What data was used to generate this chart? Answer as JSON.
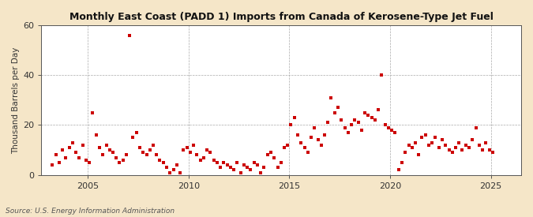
{
  "title": "Monthly East Coast (PADD 1) Imports from Canada of Kerosene-Type Jet Fuel",
  "ylabel": "Thousand Barrels per Day",
  "source": "Source: U.S. Energy Information Administration",
  "figure_bg": "#f5e6c8",
  "plot_bg": "#ffffff",
  "dot_color": "#cc0000",
  "ylim": [
    0,
    60
  ],
  "yticks": [
    0,
    20,
    40,
    60
  ],
  "xlim_start": 2002.7,
  "xlim_end": 2026.5,
  "xticks": [
    2005,
    2010,
    2015,
    2020,
    2025
  ],
  "data": [
    [
      2003.25,
      4
    ],
    [
      2003.42,
      8
    ],
    [
      2003.58,
      5
    ],
    [
      2003.75,
      10
    ],
    [
      2003.92,
      7
    ],
    [
      2004.08,
      11
    ],
    [
      2004.25,
      13
    ],
    [
      2004.42,
      9
    ],
    [
      2004.58,
      7
    ],
    [
      2004.75,
      12
    ],
    [
      2004.92,
      6
    ],
    [
      2005.08,
      5
    ],
    [
      2005.25,
      25
    ],
    [
      2005.42,
      16
    ],
    [
      2005.58,
      11
    ],
    [
      2005.75,
      8
    ],
    [
      2005.92,
      12
    ],
    [
      2006.08,
      10
    ],
    [
      2006.25,
      9
    ],
    [
      2006.42,
      7
    ],
    [
      2006.58,
      5
    ],
    [
      2006.75,
      6
    ],
    [
      2006.92,
      8
    ],
    [
      2007.08,
      56
    ],
    [
      2007.25,
      15
    ],
    [
      2007.42,
      17
    ],
    [
      2007.58,
      11
    ],
    [
      2007.75,
      9
    ],
    [
      2007.92,
      8
    ],
    [
      2008.08,
      10
    ],
    [
      2008.25,
      12
    ],
    [
      2008.42,
      8
    ],
    [
      2008.58,
      6
    ],
    [
      2008.75,
      5
    ],
    [
      2008.92,
      3
    ],
    [
      2009.08,
      1
    ],
    [
      2009.25,
      2
    ],
    [
      2009.42,
      4
    ],
    [
      2009.58,
      1
    ],
    [
      2009.75,
      10
    ],
    [
      2009.92,
      11
    ],
    [
      2010.08,
      9
    ],
    [
      2010.25,
      12
    ],
    [
      2010.42,
      8
    ],
    [
      2010.58,
      6
    ],
    [
      2010.75,
      7
    ],
    [
      2010.92,
      10
    ],
    [
      2011.08,
      9
    ],
    [
      2011.25,
      6
    ],
    [
      2011.42,
      5
    ],
    [
      2011.58,
      3
    ],
    [
      2011.75,
      5
    ],
    [
      2011.92,
      4
    ],
    [
      2012.08,
      3
    ],
    [
      2012.25,
      2
    ],
    [
      2012.42,
      5
    ],
    [
      2012.58,
      1
    ],
    [
      2012.75,
      4
    ],
    [
      2012.92,
      3
    ],
    [
      2013.08,
      2
    ],
    [
      2013.25,
      5
    ],
    [
      2013.42,
      4
    ],
    [
      2013.58,
      1
    ],
    [
      2013.75,
      3
    ],
    [
      2013.92,
      8
    ],
    [
      2014.08,
      9
    ],
    [
      2014.25,
      7
    ],
    [
      2014.42,
      3
    ],
    [
      2014.58,
      5
    ],
    [
      2014.75,
      11
    ],
    [
      2014.92,
      12
    ],
    [
      2015.08,
      20
    ],
    [
      2015.25,
      23
    ],
    [
      2015.42,
      16
    ],
    [
      2015.58,
      13
    ],
    [
      2015.75,
      11
    ],
    [
      2015.92,
      9
    ],
    [
      2016.08,
      15
    ],
    [
      2016.25,
      19
    ],
    [
      2016.42,
      14
    ],
    [
      2016.58,
      12
    ],
    [
      2016.75,
      16
    ],
    [
      2016.92,
      21
    ],
    [
      2017.08,
      31
    ],
    [
      2017.25,
      25
    ],
    [
      2017.42,
      27
    ],
    [
      2017.58,
      22
    ],
    [
      2017.75,
      19
    ],
    [
      2017.92,
      17
    ],
    [
      2018.08,
      20
    ],
    [
      2018.25,
      22
    ],
    [
      2018.42,
      21
    ],
    [
      2018.58,
      18
    ],
    [
      2018.75,
      25
    ],
    [
      2018.92,
      24
    ],
    [
      2019.08,
      23
    ],
    [
      2019.25,
      22
    ],
    [
      2019.42,
      26
    ],
    [
      2019.58,
      40
    ],
    [
      2019.75,
      20
    ],
    [
      2019.92,
      19
    ],
    [
      2020.08,
      18
    ],
    [
      2020.25,
      17
    ],
    [
      2020.42,
      2
    ],
    [
      2020.58,
      5
    ],
    [
      2020.75,
      9
    ],
    [
      2020.92,
      12
    ],
    [
      2021.08,
      11
    ],
    [
      2021.25,
      13
    ],
    [
      2021.42,
      8
    ],
    [
      2021.58,
      15
    ],
    [
      2021.75,
      16
    ],
    [
      2021.92,
      12
    ],
    [
      2022.08,
      13
    ],
    [
      2022.25,
      15
    ],
    [
      2022.42,
      11
    ],
    [
      2022.58,
      14
    ],
    [
      2022.75,
      12
    ],
    [
      2022.92,
      10
    ],
    [
      2023.08,
      9
    ],
    [
      2023.25,
      11
    ],
    [
      2023.42,
      13
    ],
    [
      2023.58,
      10
    ],
    [
      2023.75,
      12
    ],
    [
      2023.92,
      11
    ],
    [
      2024.08,
      14
    ],
    [
      2024.25,
      19
    ],
    [
      2024.42,
      12
    ],
    [
      2024.58,
      10
    ],
    [
      2024.75,
      13
    ],
    [
      2024.92,
      10
    ],
    [
      2025.08,
      9
    ]
  ]
}
